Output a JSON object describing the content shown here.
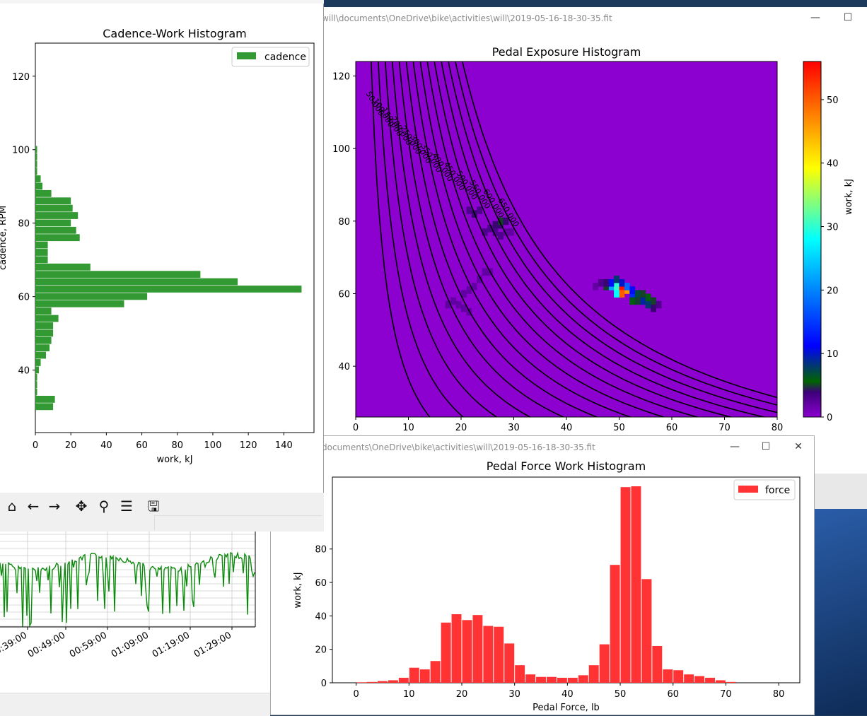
{
  "windows": {
    "exposure": {
      "title": "will\\documents\\OneDrive\\bike\\activities\\will\\2019-05-16-18-30-35.fit",
      "controls": {
        "minimize": "—",
        "maximize": "☐"
      }
    },
    "force": {
      "title": "documents\\OneDrive\\bike\\activities\\will\\2019-05-16-18-30-35.fit",
      "controls": {
        "minimize": "—",
        "maximize": "☐",
        "close": "✕"
      }
    }
  },
  "colors": {
    "bar_green": "#339933",
    "bar_red": "#ff3333",
    "heat_bg": "#8c00d0",
    "desktop": "#1b3a5c"
  },
  "toolbar_icons": [
    "home-icon",
    "back-arrow-icon",
    "forward-arrow-icon",
    "pan-icon",
    "zoom-icon",
    "configure-icon",
    "save-icon"
  ],
  "toolbar_glyphs": [
    "⌂",
    "←",
    "→",
    "✥",
    "⚲",
    "☰",
    "🖫"
  ],
  "chart_data": [
    {
      "type": "bar",
      "orientation": "horizontal",
      "title": "Cadence-Work Histogram",
      "xlabel": "work, kJ",
      "ylabel": "cadence, RPM",
      "xlim": [
        0,
        157
      ],
      "ylim": [
        23,
        129
      ],
      "xticks": [
        0,
        20,
        40,
        60,
        80,
        100,
        120,
        140
      ],
      "yticks": [
        40,
        60,
        80,
        100,
        120
      ],
      "legend": "top-right",
      "series": [
        {
          "name": "cadence",
          "bins": [
            [
              30,
              10
            ],
            [
              32,
              11
            ],
            [
              34,
              1
            ],
            [
              36,
              1
            ],
            [
              38,
              1
            ],
            [
              40,
              2
            ],
            [
              42,
              3
            ],
            [
              44,
              6
            ],
            [
              46,
              8
            ],
            [
              48,
              9
            ],
            [
              50,
              10
            ],
            [
              52,
              10
            ],
            [
              54,
              13
            ],
            [
              56,
              9
            ],
            [
              58,
              50
            ],
            [
              60,
              63
            ],
            [
              62,
              150
            ],
            [
              64,
              114
            ],
            [
              66,
              93
            ],
            [
              68,
              31
            ],
            [
              70,
              7
            ],
            [
              72,
              7
            ],
            [
              74,
              7
            ],
            [
              76,
              25
            ],
            [
              78,
              23
            ],
            [
              80,
              20
            ],
            [
              82,
              24
            ],
            [
              84,
              21
            ],
            [
              86,
              20
            ],
            [
              88,
              9
            ],
            [
              90,
              4
            ],
            [
              92,
              3
            ],
            [
              94,
              1
            ],
            [
              96,
              1
            ],
            [
              98,
              1
            ],
            [
              100,
              1
            ]
          ],
          "bin_width": 2
        }
      ]
    },
    {
      "type": "heatmap",
      "title": "Pedal Exposure Histogram",
      "xlim": [
        0,
        80
      ],
      "ylim": [
        26,
        124
      ],
      "xticks": [
        0,
        10,
        20,
        30,
        40,
        50,
        60,
        70,
        80
      ],
      "yticks": [
        40,
        60,
        80,
        100,
        120
      ],
      "colorbar": {
        "label": "work, kJ",
        "range": [
          0,
          56
        ],
        "ticks": [
          0,
          10,
          20,
          30,
          40,
          50
        ]
      },
      "contour_labels": [
        "50.000",
        "100.000",
        "150.000",
        "200.000",
        "250.000",
        "300.000",
        "350.000",
        "400.000",
        "450.000",
        "500.000",
        "550.000",
        "600.000",
        "650.000"
      ],
      "contour_levels": [
        50,
        100,
        150,
        200,
        250,
        300,
        350,
        400,
        450,
        500,
        550,
        600,
        650,
        700
      ],
      "cells": [
        [
          48,
          62,
          22
        ],
        [
          49,
          62,
          30
        ],
        [
          50,
          61,
          55
        ],
        [
          51,
          61,
          46
        ],
        [
          50,
          60,
          50
        ],
        [
          49,
          60,
          28
        ],
        [
          51,
          62,
          18
        ],
        [
          52,
          60,
          14
        ],
        [
          52,
          61,
          12
        ],
        [
          48,
          63,
          12
        ],
        [
          49,
          64,
          8
        ],
        [
          50,
          63,
          10
        ],
        [
          53,
          59,
          10
        ],
        [
          54,
          58,
          9
        ],
        [
          55,
          57,
          8
        ],
        [
          53,
          60,
          7
        ],
        [
          54,
          60,
          5
        ],
        [
          55,
          59,
          6
        ],
        [
          56,
          58,
          5
        ],
        [
          47,
          62,
          5
        ],
        [
          47,
          63,
          4
        ],
        [
          46,
          63,
          3
        ],
        [
          45,
          62,
          2
        ],
        [
          56,
          56,
          4
        ],
        [
          57,
          57,
          3
        ],
        [
          52,
          58,
          6
        ],
        [
          53,
          58,
          5
        ],
        [
          26,
          79,
          4
        ],
        [
          27,
          79,
          4
        ],
        [
          27,
          80,
          5
        ],
        [
          28,
          80,
          4
        ],
        [
          25,
          78,
          3
        ],
        [
          24,
          77,
          3
        ],
        [
          22,
          82,
          4
        ],
        [
          23,
          83,
          3
        ],
        [
          21,
          83,
          3
        ],
        [
          26,
          77,
          3
        ],
        [
          27,
          76,
          3
        ],
        [
          28,
          77,
          2
        ],
        [
          29,
          77,
          2
        ],
        [
          19,
          57,
          2
        ],
        [
          20,
          56,
          2
        ],
        [
          21,
          55,
          2
        ],
        [
          18,
          58,
          2
        ],
        [
          17,
          57,
          2
        ],
        [
          20,
          60,
          2
        ],
        [
          21,
          61,
          2
        ],
        [
          22,
          62,
          2
        ],
        [
          24,
          66,
          2
        ],
        [
          25,
          66,
          2
        ],
        [
          23,
          64,
          2
        ]
      ]
    },
    {
      "type": "bar",
      "title": "Pedal Force Work Histogram",
      "xlabel": "Pedal Force, lb",
      "ylabel": "work, kJ",
      "xlim": [
        -4.5,
        84
      ],
      "ylim": [
        0,
        123
      ],
      "xticks": [
        0,
        10,
        20,
        30,
        40,
        50,
        60,
        70,
        80
      ],
      "yticks": [
        0,
        20,
        40,
        60,
        80
      ],
      "legend": "top-right",
      "series": [
        {
          "name": "force",
          "bin_width": 2,
          "bins": [
            [
              1,
              0.3
            ],
            [
              3,
              0.5
            ],
            [
              5,
              1
            ],
            [
              7,
              1.5
            ],
            [
              9,
              3
            ],
            [
              11,
              9
            ],
            [
              13,
              8
            ],
            [
              15,
              13
            ],
            [
              17,
              36
            ],
            [
              19,
              41
            ],
            [
              21,
              37.5
            ],
            [
              23,
              40.5
            ],
            [
              25,
              34
            ],
            [
              27,
              33.5
            ],
            [
              29,
              23.5
            ],
            [
              31,
              10.5
            ],
            [
              33,
              5
            ],
            [
              35,
              3.5
            ],
            [
              37,
              3.5
            ],
            [
              39,
              3
            ],
            [
              41,
              3
            ],
            [
              43,
              4.5
            ],
            [
              45,
              10.5
            ],
            [
              47,
              23
            ],
            [
              49,
              70.5
            ],
            [
              51,
              117
            ],
            [
              53,
              117.5
            ],
            [
              55,
              62
            ],
            [
              57,
              22
            ],
            [
              59,
              8
            ],
            [
              61,
              7.5
            ],
            [
              63,
              5
            ],
            [
              65,
              4
            ],
            [
              67,
              3
            ],
            [
              69,
              1.5
            ],
            [
              71,
              0.5
            ]
          ]
        }
      ]
    }
  ],
  "timeseries_fragment": {
    "xticks": [
      "00:39:00",
      "00:49:00",
      "00:59:00",
      "01:09:00",
      "01:19:00",
      "01:29:00"
    ]
  }
}
